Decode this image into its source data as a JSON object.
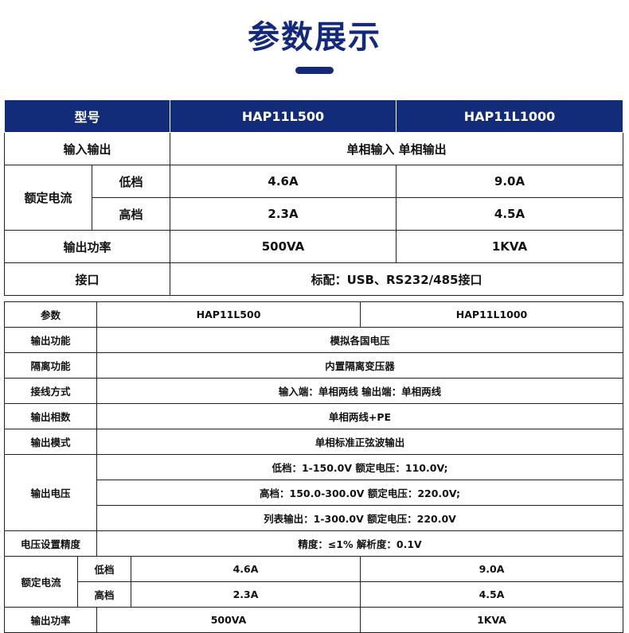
{
  "page_title": "参数展示",
  "table1": {
    "header": {
      "label": "型号",
      "model_a": "HAP11L500",
      "model_b": "HAP11L1000"
    },
    "io": {
      "label": "输入输出",
      "value": "单相输入 单相输出"
    },
    "current": {
      "label": "额定电流",
      "low_label": "低档",
      "low_a": "4.6A",
      "low_b": "9.0A",
      "high_label": "高档",
      "high_a": "2.3A",
      "high_b": "4.5A"
    },
    "power": {
      "label": "输出功率",
      "a": "500VA",
      "b": "1KVA"
    },
    "interface": {
      "label": "接口",
      "value": "标配：USB、RS232/485接口"
    }
  },
  "table2": {
    "header": {
      "label": "参数",
      "model_a": "HAP11L500",
      "model_b": "HAP11L1000"
    },
    "rows": [
      {
        "label": "输出功能",
        "value": "模拟各国电压"
      },
      {
        "label": "隔离功能",
        "value": "内置隔离变压器"
      },
      {
        "label": "接线方式",
        "value": "输入端：单相两线 输出端：单相两线"
      },
      {
        "label": "输出相数",
        "value": "单相两线+PE"
      },
      {
        "label": "输出模式",
        "value": "单相标准正弦波输出"
      }
    ],
    "voltage": {
      "label": "输出电压",
      "lines": [
        "低档：1-150.0V 额定电压：110.0V;",
        "高档：150.0-300.0V 额定电压：220.0V;",
        "列表输出：1-300.0V 额定电压：220.0V"
      ]
    },
    "precision": {
      "label": "电压设置精度",
      "value": "精度：≤1% 解析度：0.1V"
    },
    "current": {
      "label": "额定电流",
      "low_label": "低档",
      "low_a": "4.6A",
      "low_b": "9.0A",
      "high_label": "高档",
      "high_a": "2.3A",
      "high_b": "4.5A"
    },
    "power": {
      "label": "输出功率",
      "a": "500VA",
      "b": "1KVA"
    }
  },
  "colors": {
    "brand": "#132c7a"
  }
}
